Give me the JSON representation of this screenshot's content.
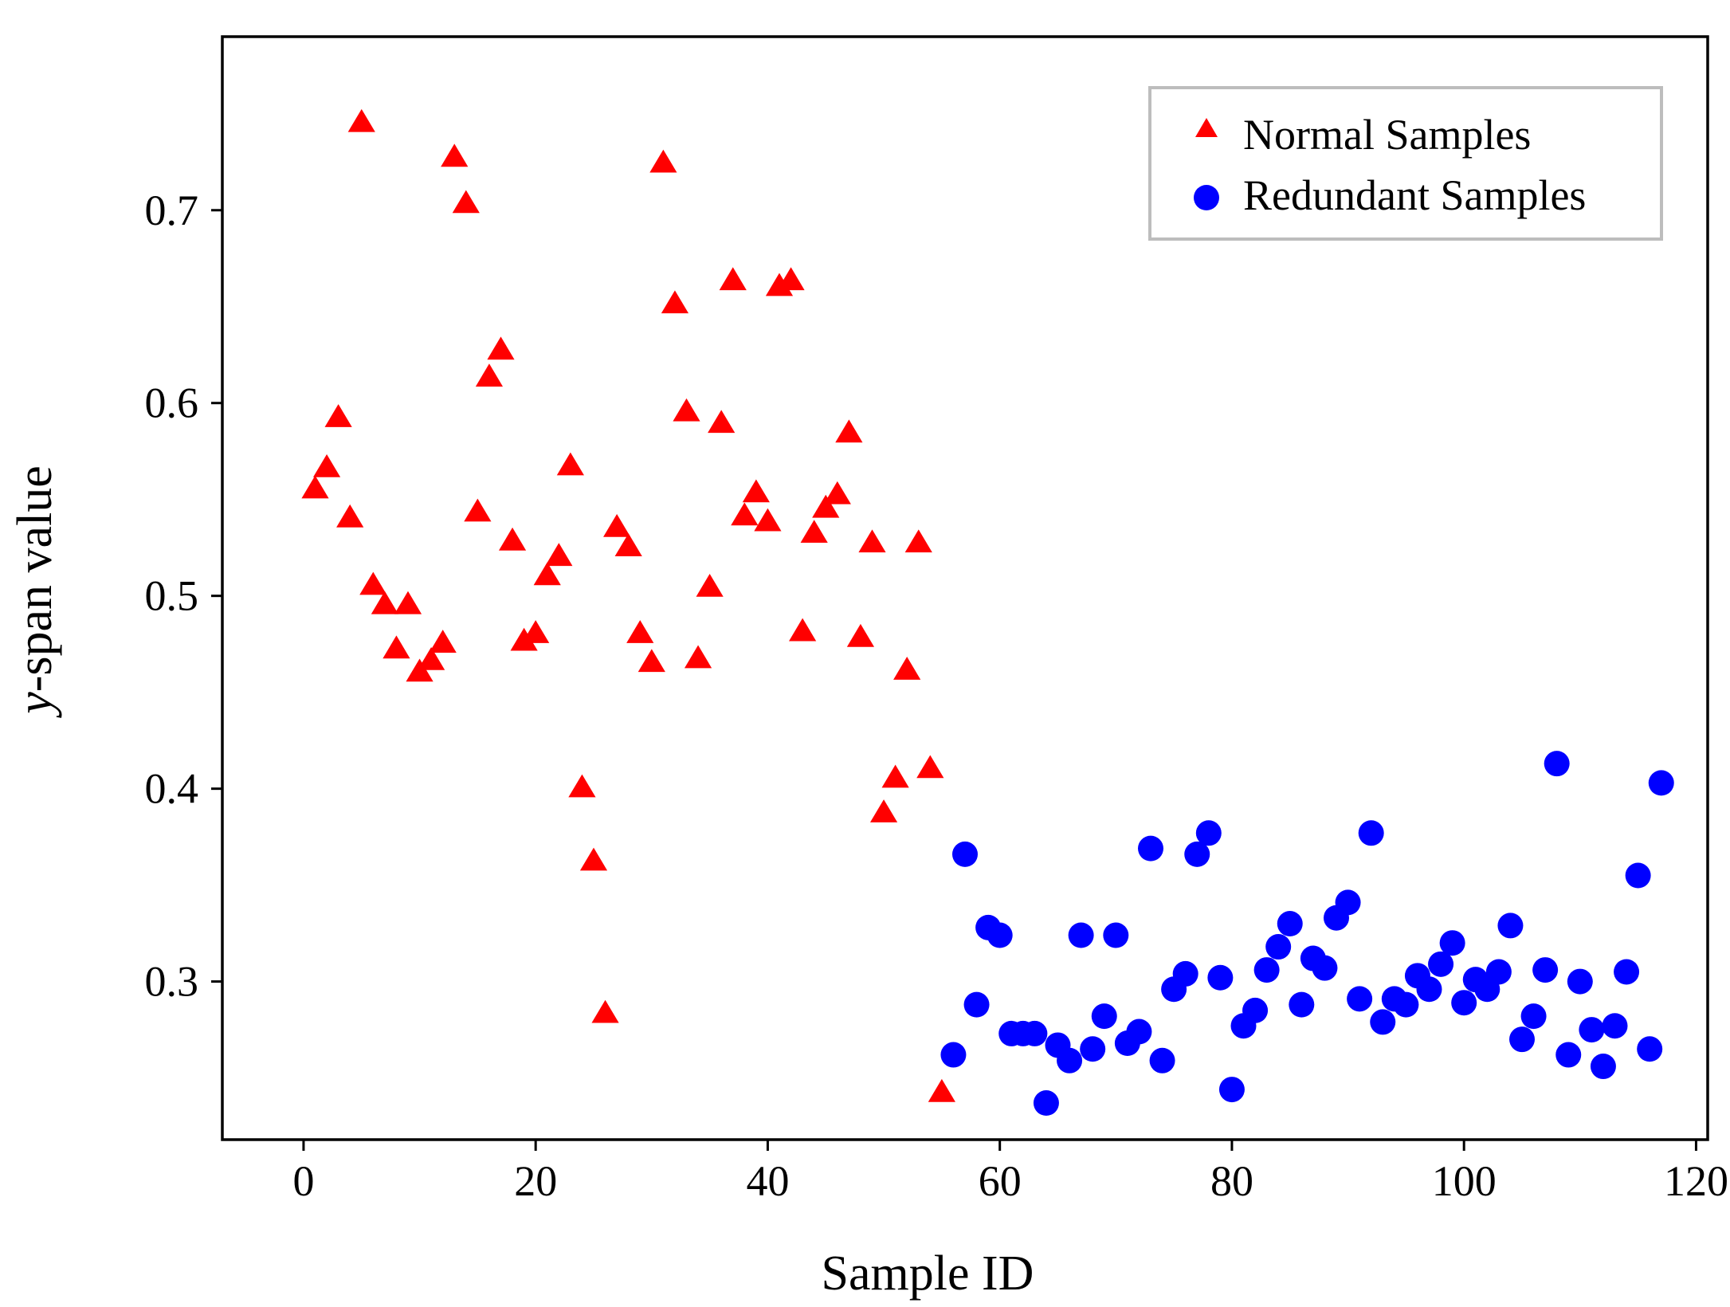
{
  "chart_data": {
    "type": "scatter",
    "title": "",
    "xlabel": "Sample ID",
    "ylabel_italic": "y",
    "ylabel_rest": "-span value",
    "xlim": [
      -7,
      121
    ],
    "ylim": [
      0.218,
      0.79
    ],
    "xticks": [
      0,
      20,
      40,
      60,
      80,
      100,
      120
    ],
    "yticks": [
      0.3,
      0.4,
      0.5,
      0.6,
      0.7
    ],
    "xtick_labels": [
      "0",
      "20",
      "40",
      "60",
      "80",
      "100",
      "120"
    ],
    "ytick_labels": [
      "0.3",
      "0.4",
      "0.5",
      "0.6",
      "0.7"
    ],
    "grid": false,
    "legend_position": "top-right",
    "series": [
      {
        "name": "Normal Samples",
        "marker": "triangle",
        "color": "#ff0000",
        "x": [
          1,
          2,
          3,
          4,
          5,
          6,
          7,
          8,
          9,
          10,
          11,
          12,
          13,
          14,
          15,
          16,
          17,
          18,
          19,
          20,
          21,
          22,
          23,
          24,
          25,
          26,
          27,
          28,
          29,
          30,
          31,
          32,
          33,
          34,
          35,
          36,
          37,
          38,
          39,
          40,
          41,
          42,
          43,
          44,
          45,
          46,
          47,
          48,
          49,
          50,
          51,
          52,
          53,
          54,
          55
        ],
        "y": [
          0.555,
          0.566,
          0.592,
          0.54,
          0.745,
          0.505,
          0.495,
          0.472,
          0.495,
          0.46,
          0.466,
          0.475,
          0.727,
          0.703,
          0.543,
          0.613,
          0.627,
          0.528,
          0.476,
          0.48,
          0.51,
          0.52,
          0.567,
          0.4,
          0.362,
          0.283,
          0.535,
          0.525,
          0.48,
          0.465,
          0.724,
          0.651,
          0.595,
          0.467,
          0.504,
          0.589,
          0.663,
          0.541,
          0.553,
          0.538,
          0.66,
          0.663,
          0.481,
          0.532,
          0.545,
          0.552,
          0.584,
          0.478,
          0.527,
          0.387,
          0.405,
          0.461,
          0.527,
          0.41,
          0.242
        ]
      },
      {
        "name": "Redundant Samples",
        "marker": "circle",
        "color": "#0000ff",
        "x": [
          56,
          57,
          58,
          59,
          60,
          61,
          62,
          63,
          64,
          65,
          66,
          67,
          68,
          69,
          70,
          71,
          72,
          73,
          74,
          75,
          76,
          77,
          78,
          79,
          80,
          81,
          82,
          83,
          84,
          85,
          86,
          87,
          88,
          89,
          90,
          91,
          92,
          93,
          94,
          95,
          96,
          97,
          98,
          99,
          100,
          101,
          102,
          103,
          104,
          105,
          106,
          107,
          108,
          109,
          110,
          111,
          112,
          113,
          114,
          115,
          116,
          117
        ],
        "y": [
          0.262,
          0.366,
          0.288,
          0.328,
          0.324,
          0.273,
          0.273,
          0.273,
          0.237,
          0.267,
          0.259,
          0.324,
          0.265,
          0.282,
          0.324,
          0.268,
          0.274,
          0.369,
          0.259,
          0.296,
          0.304,
          0.366,
          0.377,
          0.302,
          0.244,
          0.277,
          0.285,
          0.306,
          0.318,
          0.33,
          0.288,
          0.312,
          0.307,
          0.333,
          0.341,
          0.291,
          0.377,
          0.279,
          0.291,
          0.288,
          0.303,
          0.296,
          0.309,
          0.32,
          0.289,
          0.301,
          0.296,
          0.305,
          0.329,
          0.27,
          0.282,
          0.306,
          0.413,
          0.262,
          0.3,
          0.275,
          0.256,
          0.277,
          0.305,
          0.355,
          0.265,
          0.403
        ]
      }
    ]
  }
}
